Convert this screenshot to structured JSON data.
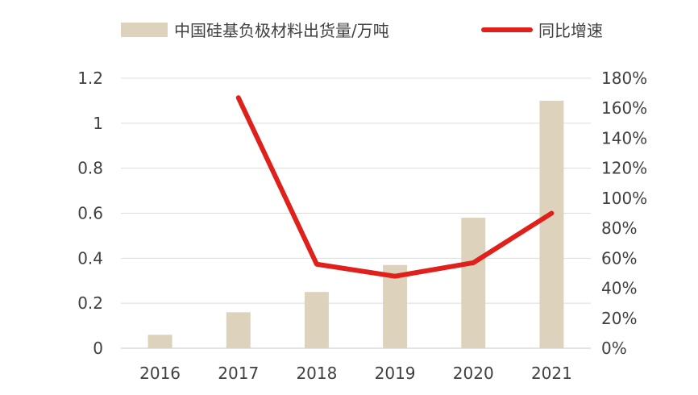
{
  "chart_data": {
    "type": "bar",
    "categories": [
      "2016",
      "2017",
      "2018",
      "2019",
      "2020",
      "2021"
    ],
    "series": [
      {
        "name": "中国硅基负极材料出货量/万吨",
        "type": "bar",
        "axis": "left",
        "color": "#ddd3bd",
        "values": [
          0.06,
          0.16,
          0.25,
          0.37,
          0.58,
          1.1
        ]
      },
      {
        "name": "同比增速",
        "type": "line",
        "axis": "right",
        "color": "#e0201b",
        "values": [
          null,
          1.67,
          0.56,
          0.48,
          0.57,
          0.9
        ]
      }
    ],
    "y_left": {
      "min": 0,
      "max": 1.2,
      "ticks": [
        "0",
        "0.2",
        "0.4",
        "0.6",
        "0.8",
        "1",
        "1.2"
      ]
    },
    "y_right": {
      "min": 0,
      "max": 1.8,
      "ticks": [
        "0%",
        "20%",
        "40%",
        "60%",
        "80%",
        "100%",
        "120%",
        "140%",
        "160%",
        "180%"
      ]
    },
    "grid": true,
    "legend_position": "top"
  }
}
